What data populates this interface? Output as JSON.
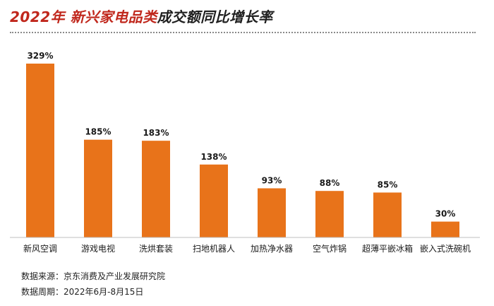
{
  "title": {
    "accent": "2022年 新兴家电品类",
    "rest": "成交额同比增长率"
  },
  "footer": {
    "source": "数据来源：京东消费及产业发展研究院",
    "period": "数据周期：2022年6月-8月15日"
  },
  "chart_data": {
    "type": "bar",
    "title": "2022年 新兴家电品类成交额同比增长率",
    "categories": [
      "新风空调",
      "游戏电视",
      "洗烘套装",
      "扫地机器人",
      "加热净水器",
      "空气炸锅",
      "超薄平嵌冰箱",
      "嵌入式洗碗机"
    ],
    "values": [
      329,
      185,
      183,
      138,
      93,
      88,
      85,
      30
    ],
    "value_labels": [
      "329%",
      "185%",
      "183%",
      "138%",
      "93%",
      "88%",
      "85%",
      "30%"
    ],
    "ylim": [
      0,
      329
    ],
    "grid": false,
    "legend": "none",
    "bar_color": "#e8731a",
    "axis_color": "#bfbfbf"
  }
}
